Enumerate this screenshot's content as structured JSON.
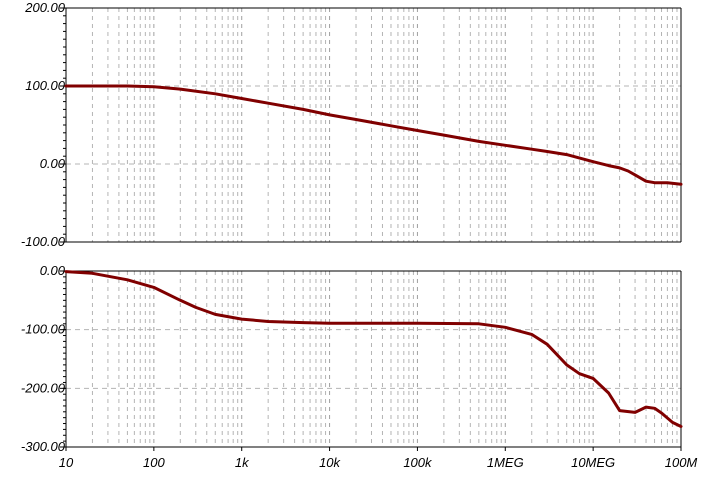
{
  "chart_data": [
    {
      "type": "line",
      "title": "",
      "xlabel": "",
      "ylabel": "",
      "x_scale": "log",
      "xlim": [
        10,
        100000000
      ],
      "ylim": [
        -100,
        200
      ],
      "grid": true,
      "y_ticks": [
        200,
        100,
        0,
        -100
      ],
      "y_tick_labels": [
        "200.00",
        "100.00",
        "0.00",
        "-100.00"
      ],
      "series": [
        {
          "color": "#800000",
          "x": [
            10,
            20,
            50,
            100,
            200,
            500,
            1000,
            2000,
            5000,
            10000,
            20000,
            50000,
            100000,
            200000,
            500000,
            1000000,
            2000000,
            3000000,
            5000000,
            10000000,
            15000000,
            20000000,
            25000000,
            30000000,
            40000000,
            50000000,
            70000000,
            100000000
          ],
          "y": [
            100,
            100,
            100,
            99,
            96,
            90,
            84,
            78,
            70,
            63,
            57,
            49,
            43,
            37,
            29,
            24,
            19,
            16,
            12,
            3,
            -2,
            -5,
            -9,
            -14,
            -22,
            -24,
            -24,
            -26
          ]
        }
      ]
    },
    {
      "type": "line",
      "title": "",
      "xlabel": "",
      "ylabel": "",
      "x_scale": "log",
      "xlim": [
        10,
        100000000
      ],
      "ylim": [
        -300,
        0
      ],
      "grid": true,
      "y_ticks": [
        0,
        -100,
        -200,
        -300
      ],
      "y_tick_labels": [
        "0.00",
        "-100.00",
        "-200.00",
        "-300.00"
      ],
      "x_ticks": [
        10,
        100,
        1000,
        10000,
        100000,
        1000000,
        10000000,
        100000000
      ],
      "x_tick_labels": [
        "10",
        "100",
        "1k",
        "10k",
        "100k",
        "1MEG",
        "10MEG",
        "100M"
      ],
      "series": [
        {
          "color": "#800000",
          "x": [
            10,
            20,
            50,
            100,
            200,
            300,
            500,
            1000,
            2000,
            5000,
            10000,
            100000,
            500000,
            1000000,
            2000000,
            3000000,
            5000000,
            7000000,
            10000000,
            15000000,
            20000000,
            30000000,
            40000000,
            50000000,
            60000000,
            80000000,
            100000000
          ],
          "y": [
            -1,
            -4,
            -15,
            -28,
            -50,
            -62,
            -74,
            -82,
            -86,
            -88,
            -89,
            -89,
            -90,
            -96,
            -108,
            -125,
            -160,
            -175,
            -183,
            -208,
            -238,
            -241,
            -232,
            -234,
            -242,
            -258,
            -265
          ]
        }
      ]
    }
  ]
}
